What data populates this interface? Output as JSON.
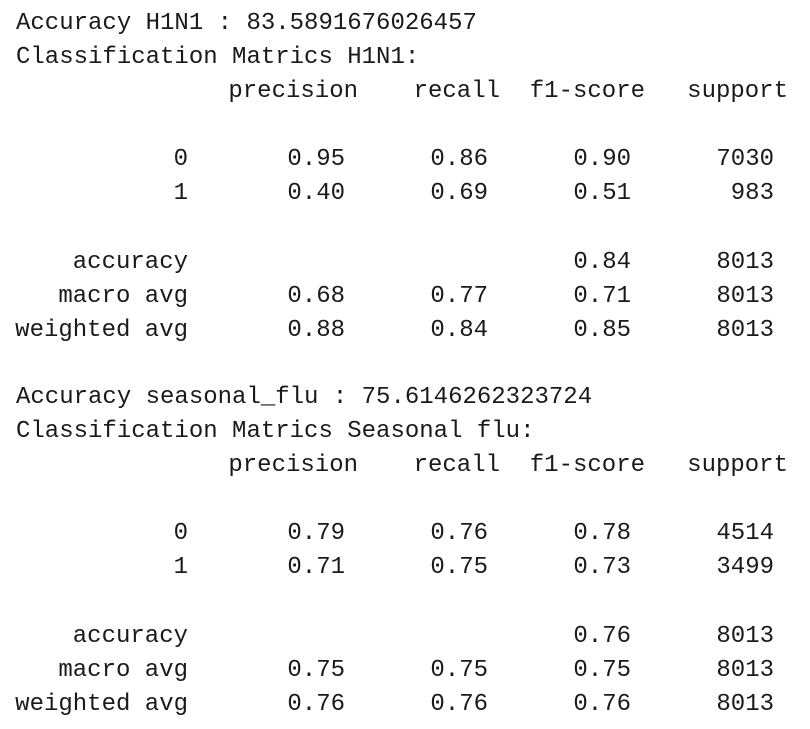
{
  "reports": [
    {
      "accuracy_line": "Accuracy H1N1 : 83.5891676026457",
      "title": "Classification Matrics H1N1:",
      "header": [
        "precision",
        "recall",
        "f1-score",
        "support"
      ],
      "class_rows": [
        [
          "0",
          "0.95",
          "0.86",
          "0.90",
          "7030"
        ],
        [
          "1",
          "0.40",
          "0.69",
          "0.51",
          "983"
        ]
      ],
      "accuracy_row": [
        "accuracy",
        "0.84",
        "8013"
      ],
      "avg_rows": [
        [
          "macro avg",
          "0.68",
          "0.77",
          "0.71",
          "8013"
        ],
        [
          "weighted avg",
          "0.88",
          "0.84",
          "0.85",
          "8013"
        ]
      ]
    },
    {
      "accuracy_line": "Accuracy seasonal_flu : 75.6146262323724",
      "title": "Classification Matrics Seasonal flu:",
      "header": [
        "precision",
        "recall",
        "f1-score",
        "support"
      ],
      "class_rows": [
        [
          "0",
          "0.79",
          "0.76",
          "0.78",
          "4514"
        ],
        [
          "1",
          "0.71",
          "0.75",
          "0.73",
          "3499"
        ]
      ],
      "accuracy_row": [
        "accuracy",
        "0.76",
        "8013"
      ],
      "avg_rows": [
        [
          "macro avg",
          "0.75",
          "0.75",
          "0.75",
          "8013"
        ],
        [
          "weighted avg",
          "0.76",
          "0.76",
          "0.76",
          "8013"
        ]
      ]
    }
  ]
}
